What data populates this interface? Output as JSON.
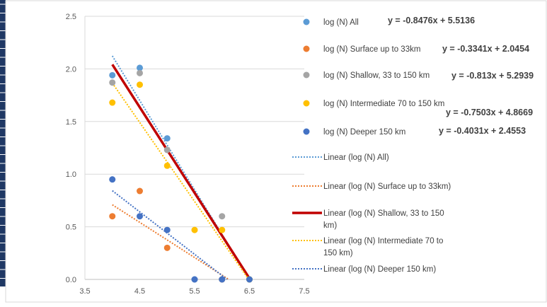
{
  "chart_data": {
    "type": "scatter",
    "xlim": [
      3.5,
      7.5
    ],
    "ylim": [
      0,
      2.5
    ],
    "x_ticks": [
      "3.5",
      "4.5",
      "5.5",
      "6.5",
      "7.5"
    ],
    "y_ticks": [
      "0.0",
      "0.5",
      "1.0",
      "1.5",
      "2.0",
      "2.5"
    ],
    "grid": "horizontal",
    "legend_position": "right",
    "series": [
      {
        "name": "log (N) All",
        "color": "#5b9bd5",
        "marker": "circle",
        "points": [
          [
            4.0,
            1.94
          ],
          [
            4.5,
            2.01
          ],
          [
            5.0,
            1.34
          ],
          [
            5.5,
            0.0
          ],
          [
            6.0,
            0.0
          ],
          [
            6.5,
            0.0
          ]
        ],
        "equation": "y = -0.8476x + 5.5136",
        "trendline": {
          "name": "Linear (log (N) All)",
          "slope": -0.8476,
          "intercept": 5.5136,
          "style": "dotted",
          "color": "#5b9bd5"
        }
      },
      {
        "name": "log (N) Surface up to 33km",
        "color": "#ed7d31",
        "marker": "circle",
        "points": [
          [
            4.0,
            0.6
          ],
          [
            4.5,
            0.84
          ],
          [
            5.0,
            0.3
          ],
          [
            6.0,
            0.0
          ]
        ],
        "equation": "y = -0.3341x + 2.0454",
        "trendline": {
          "name": "Linear (log (N) Surface up to 33km)",
          "slope": -0.3341,
          "intercept": 2.0454,
          "style": "dotted",
          "color": "#ed7d31"
        }
      },
      {
        "name": "log (N) Shallow, 33 to 150 km",
        "color": "#a5a5a5",
        "marker": "circle",
        "points": [
          [
            4.0,
            1.87
          ],
          [
            4.5,
            1.96
          ],
          [
            5.0,
            1.23
          ],
          [
            6.0,
            0.6
          ],
          [
            6.5,
            0.0
          ]
        ],
        "equation": "y = -0.813x + 5.2939",
        "trendline": {
          "name": "Linear (log (N) Shallow, 33 to 150 km)",
          "slope": -0.813,
          "intercept": 5.2939,
          "style": "solid",
          "color": "#c00000"
        }
      },
      {
        "name": "log (N) Intermediate 70 to 150 km",
        "color": "#ffc000",
        "marker": "circle",
        "points": [
          [
            4.0,
            1.68
          ],
          [
            4.5,
            1.85
          ],
          [
            5.0,
            1.08
          ],
          [
            5.5,
            0.47
          ],
          [
            6.0,
            0.47
          ],
          [
            6.5,
            0.0
          ]
        ],
        "equation": "y = -0.7503x + 4.8669",
        "trendline": {
          "name": "Linear (log (N) Intermediate 70 to 150 km)",
          "slope": -0.7503,
          "intercept": 4.8669,
          "style": "dotted",
          "color": "#ffc000"
        }
      },
      {
        "name": "log (N) Deeper 150 km",
        "color": "#4472c4",
        "marker": "circle",
        "points": [
          [
            4.0,
            0.95
          ],
          [
            4.5,
            0.6
          ],
          [
            5.0,
            0.47
          ],
          [
            5.5,
            0.0
          ],
          [
            6.0,
            0.0
          ],
          [
            6.5,
            0.0
          ]
        ],
        "equation": "y = -0.4031x + 2.4553",
        "trendline": {
          "name": "Linear (log (N) Deeper 150 km)",
          "slope": -0.4031,
          "intercept": 2.4553,
          "style": "dotted",
          "color": "#4472c4"
        }
      }
    ]
  }
}
